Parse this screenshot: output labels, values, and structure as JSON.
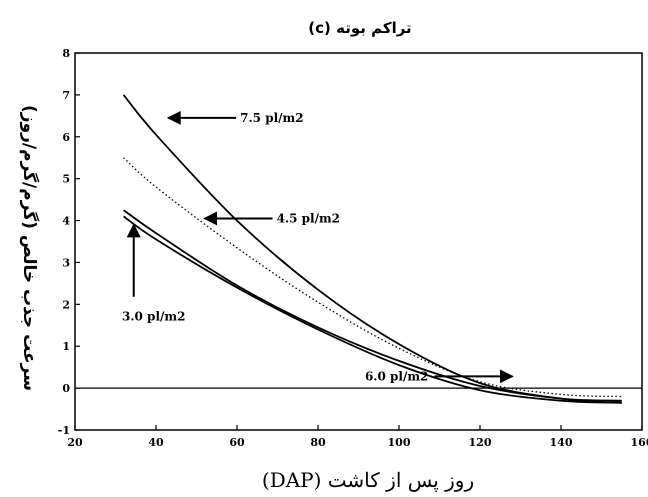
{
  "chart_data": {
    "type": "line",
    "title": "(c) تراکم بوته",
    "xlabel": "روز پس از کاشت (DAP)",
    "ylabel": "سرعت جذب خالص (گرم/گرم/روز)",
    "xlim": [
      20,
      160
    ],
    "ylim": [
      -1,
      8
    ],
    "x_ticks": [
      "20",
      "40",
      "60",
      "80",
      "100",
      "120",
      "140",
      "160"
    ],
    "y_ticks": [
      "-1",
      "0",
      "1",
      "2",
      "3",
      "4",
      "5",
      "6",
      "7",
      "8"
    ],
    "grid": false,
    "reference_line_y": 0,
    "series": [
      {
        "name": "7.5 pl/m2",
        "style": "solid",
        "x": [
          32,
          40,
          60,
          80,
          100,
          120,
          140,
          155
        ],
        "y": [
          7.0,
          6.05,
          4.0,
          2.35,
          1.05,
          0.12,
          -0.25,
          -0.35
        ]
      },
      {
        "name": "4.5 pl/m2",
        "style": "dotted",
        "x": [
          32,
          40,
          60,
          80,
          100,
          120,
          140,
          155
        ],
        "y": [
          5.5,
          4.8,
          3.35,
          2.05,
          0.95,
          0.15,
          -0.15,
          -0.2
        ]
      },
      {
        "name": "3.0 pl/m2",
        "style": "solid",
        "x": [
          32,
          40,
          60,
          80,
          100,
          120,
          140,
          155
        ],
        "y": [
          4.25,
          3.7,
          2.45,
          1.45,
          0.65,
          0.05,
          -0.25,
          -0.3
        ]
      },
      {
        "name": "6.0 pl/m2",
        "style": "solid",
        "x": [
          32,
          40,
          60,
          80,
          100,
          120,
          140,
          155
        ],
        "y": [
          4.1,
          3.55,
          2.4,
          1.4,
          0.55,
          -0.05,
          -0.3,
          -0.35
        ]
      }
    ],
    "annotations": [
      {
        "label": "7.5 pl/m2",
        "arrow_to_x": 43,
        "arrow_to_y": 6.45,
        "direction": "left"
      },
      {
        "label": "4.5 pl/m2",
        "arrow_to_x": 52,
        "arrow_to_y": 4.05,
        "direction": "left"
      },
      {
        "label": "3.0 pl/m2",
        "arrow_to_x": 34.5,
        "arrow_to_y": 3.9,
        "direction": "up"
      },
      {
        "label": "6.0 pl/m2",
        "arrow_to_x": 128,
        "arrow_to_y": 0.28,
        "direction": "right"
      }
    ]
  }
}
